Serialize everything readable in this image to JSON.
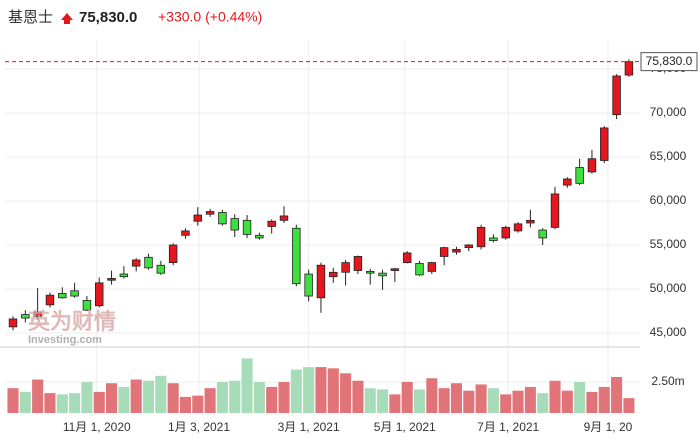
{
  "chart_data": {
    "type": "candlestick",
    "title": "基恩士",
    "price": "75,830.0",
    "change": "+330.0 (+0.44%)",
    "last_price_label": "75,830.0",
    "watermark": "英为财情",
    "watermark_sub": "Investing.com",
    "up_color": "#e3171d",
    "down_color": "#3ee03e",
    "volume_up_color": "#e07478",
    "volume_down_color": "#a6dcb8",
    "open": [
      45700,
      47100,
      46900,
      48200,
      49500,
      49800,
      48700,
      48100,
      51000,
      51700,
      52600,
      53600,
      52700,
      53000,
      56100,
      57700,
      58500,
      58700,
      58000,
      57800,
      56100,
      57100,
      57800,
      56900,
      51700,
      49000,
      51400,
      51900,
      52100,
      52000,
      51800,
      52100,
      53000,
      52900,
      52000,
      53700,
      54200,
      54700,
      54800,
      55800,
      55800,
      56600,
      57500,
      56700,
      57000,
      61800,
      63800,
      63300,
      64600,
      69800,
      74300
    ],
    "high": [
      46900,
      47600,
      50100,
      49600,
      50200,
      50700,
      49200,
      51300,
      52100,
      52600,
      53500,
      54000,
      53200,
      55200,
      56900,
      59300,
      59100,
      59000,
      58500,
      58400,
      56400,
      57900,
      59400,
      57300,
      52200,
      53000,
      52400,
      53300,
      53800,
      52300,
      52200,
      52400,
      54300,
      53200,
      53100,
      54800,
      54800,
      55100,
      57300,
      56200,
      57200,
      57600,
      59000,
      56900,
      61600,
      62700,
      64800,
      65800,
      68500,
      74400,
      76100
    ],
    "low": [
      45300,
      46200,
      46500,
      47900,
      48900,
      49000,
      47500,
      47900,
      50500,
      51200,
      52000,
      52200,
      51600,
      52700,
      55700,
      57200,
      58200,
      57200,
      55900,
      55800,
      55600,
      56300,
      57500,
      50300,
      48600,
      47300,
      50700,
      50400,
      51700,
      50500,
      49900,
      50800,
      52900,
      51500,
      51700,
      52700,
      53900,
      54300,
      54500,
      55300,
      55600,
      56400,
      57000,
      55000,
      56800,
      61500,
      61800,
      63100,
      64300,
      69300,
      74100
    ],
    "close": [
      46600,
      46700,
      47400,
      49300,
      49000,
      49200,
      47600,
      50700,
      51200,
      51400,
      53300,
      52400,
      51800,
      55000,
      56600,
      58400,
      58800,
      57400,
      56700,
      56200,
      55800,
      57700,
      58300,
      50600,
      49200,
      52700,
      51900,
      53000,
      53700,
      51800,
      51500,
      52300,
      54100,
      51600,
      53000,
      54700,
      54500,
      55000,
      57000,
      55500,
      57000,
      57400,
      57800,
      55800,
      60800,
      62500,
      62000,
      64800,
      68300,
      74200,
      75830
    ],
    "volume": [
      2000000,
      1700000,
      2700000,
      1600000,
      1500000,
      1600000,
      2500000,
      1700000,
      2400000,
      2100000,
      2700000,
      2600000,
      3000000,
      2400000,
      1300000,
      1400000,
      2000000,
      2500000,
      2600000,
      4400000,
      2500000,
      2100000,
      2500000,
      3500000,
      3700000,
      3700000,
      3600000,
      3200000,
      2600000,
      2000000,
      1900000,
      1500000,
      2500000,
      1900000,
      2800000,
      2000000,
      2400000,
      1800000,
      2300000,
      2000000,
      1500000,
      1800000,
      2100000,
      1600000,
      2600000,
      1800000,
      2500000,
      1700000,
      2100000,
      2900000,
      1200000
    ],
    "ylim": [
      43640,
      77150
    ],
    "yticks": [
      {
        "value": 45000,
        "label": "45,000"
      },
      {
        "value": 50000,
        "label": "50,000"
      },
      {
        "value": 55000,
        "label": "55,000"
      },
      {
        "value": 60000,
        "label": "60,000"
      },
      {
        "value": 65000,
        "label": "65,000"
      },
      {
        "value": 70000,
        "label": "70,000"
      },
      {
        "value": 75000,
        "label": "75,000"
      }
    ],
    "volume_ylim": [
      0,
      5240000
    ],
    "volume_yticks": [
      {
        "value": 2500000,
        "label": "2.50m"
      }
    ],
    "xlim": [
      -0.65,
      50.9
    ],
    "xticks": [
      {
        "value": 6.8,
        "label": "11月 1, 2020"
      },
      {
        "value": 15.1,
        "label": "1月 3, 2021"
      },
      {
        "value": 24.0,
        "label": "3月 1, 2021"
      },
      {
        "value": 31.8,
        "label": "5月 1, 2021"
      },
      {
        "value": 40.2,
        "label": "7月 1, 2021"
      },
      {
        "value": 48.3,
        "label": "9月 1, 20"
      }
    ],
    "grid": true
  }
}
